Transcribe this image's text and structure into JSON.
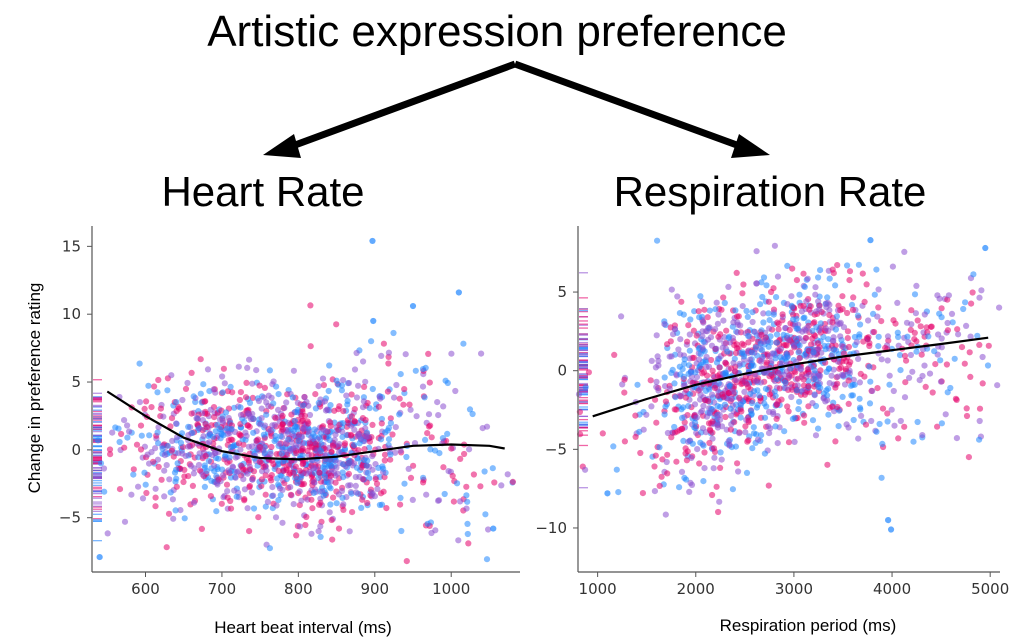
{
  "figure_title": "Artistic expression preference",
  "colors": {
    "pink": "#e6006a",
    "blue": "#1f86ff",
    "purple": "#8a4fd0",
    "fit_line": "#000000",
    "arrow": "#000000"
  },
  "chart_data": [
    {
      "type": "scatter",
      "title": "Heart Rate",
      "xlabel": "Heart beat interval (ms)",
      "ylabel": "Change in preference rating",
      "xlim": [
        530,
        1090
      ],
      "ylim": [
        -9,
        16.5
      ],
      "xticks": [
        600,
        700,
        800,
        900,
        1000
      ],
      "yticks": [
        -5,
        0,
        5,
        10,
        15
      ],
      "grid": false,
      "rug": "left",
      "clusters": [
        {
          "center": [
            700,
            0.5
          ],
          "spread": [
            70,
            2.3
          ],
          "count": 600
        },
        {
          "center": [
            820,
            -0.5
          ],
          "spread": [
            45,
            2.3
          ],
          "count": 500
        },
        {
          "center": [
            890,
            1.5
          ],
          "spread": [
            50,
            3.2
          ],
          "count": 200
        },
        {
          "center": [
            990,
            -2.0
          ],
          "spread": [
            50,
            3.2
          ],
          "count": 80
        }
      ],
      "fit_line": {
        "x": [
          550,
          600,
          650,
          700,
          750,
          800,
          850,
          900,
          950,
          1000,
          1050,
          1070
        ],
        "y": [
          4.3,
          2.5,
          0.9,
          -0.1,
          -0.6,
          -0.7,
          -0.5,
          -0.1,
          0.3,
          0.4,
          0.3,
          0.1
        ]
      },
      "outliers": [
        {
          "x": 897,
          "y": 15.4
        },
        {
          "x": 1010,
          "y": 11.6
        },
        {
          "x": 950,
          "y": 10.6
        },
        {
          "x": 898,
          "y": 9.5
        },
        {
          "x": 1055,
          "y": -5.8
        },
        {
          "x": 540,
          "y": -7.9
        }
      ]
    },
    {
      "type": "scatter",
      "title": "Respiration Rate",
      "xlabel": "Respiration period (ms)",
      "ylabel": "",
      "xlim": [
        800,
        5100
      ],
      "ylim": [
        -12.8,
        9.2
      ],
      "xticks": [
        1000,
        2000,
        3000,
        4000,
        5000
      ],
      "yticks": [
        -10,
        -5,
        0,
        5
      ],
      "grid": false,
      "rug": "left",
      "clusters": [
        {
          "center": [
            2200,
            -1.0
          ],
          "spread": [
            300,
            2.6
          ],
          "count": 550
        },
        {
          "center": [
            3100,
            1.0
          ],
          "spread": [
            380,
            2.3
          ],
          "count": 650
        },
        {
          "center": [
            4300,
            0.8
          ],
          "spread": [
            450,
            3.0
          ],
          "count": 160
        },
        {
          "center": [
            1500,
            -3.0
          ],
          "spread": [
            300,
            3.0
          ],
          "count": 60
        }
      ],
      "fit_line": {
        "x": [
          950,
          1500,
          2000,
          2500,
          3000,
          3500,
          4000,
          4500,
          4980
        ],
        "y": [
          -2.9,
          -1.8,
          -0.9,
          -0.2,
          0.4,
          0.9,
          1.3,
          1.7,
          2.1
        ]
      },
      "outliers": [
        {
          "x": 3780,
          "y": 8.3
        },
        {
          "x": 4950,
          "y": 7.8
        },
        {
          "x": 3960,
          "y": -9.5
        },
        {
          "x": 3990,
          "y": -10.1
        },
        {
          "x": 1100,
          "y": -7.8
        }
      ]
    }
  ]
}
